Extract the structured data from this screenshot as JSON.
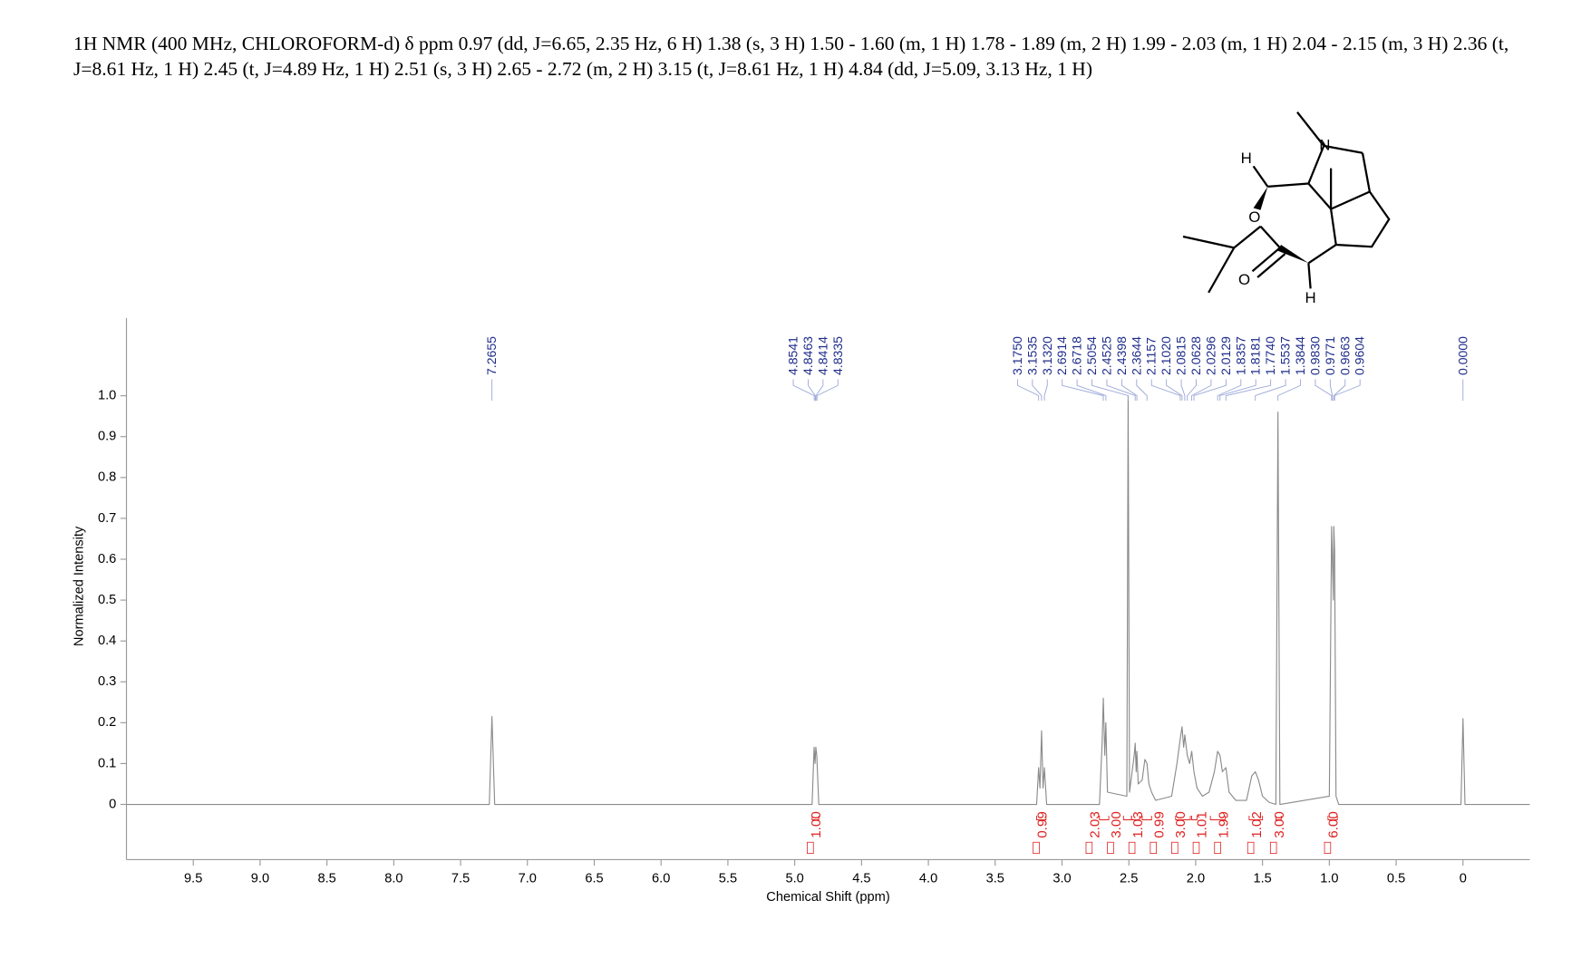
{
  "title": "1H NMR (400 MHz, CHLOROFORM-d) δ ppm 0.97 (dd, J=6.65, 2.35 Hz, 6 H) 1.38 (s, 3 H) 1.50 - 1.60 (m, 1 H) 1.78 - 1.89 (m, 2 H) 1.99 - 2.03 (m, 1 H) 2.04 - 2.15 (m, 3 H) 2.36 (t, J=8.61 Hz, 1 H) 2.45 (t, J=4.89 Hz, 1 H) 2.51 (s, 3 H) 2.65 - 2.72 (m, 2 H) 3.15 (t, J=8.61 Hz, 1 H) 4.84 (dd, J=5.09, 3.13 Hz, 1 H)",
  "structure": {
    "labels": [
      "N",
      "H",
      "O",
      "O",
      "H"
    ]
  },
  "chart_data": {
    "type": "line",
    "x_label": "Chemical Shift (ppm)",
    "y_label": "Normalized Intensity",
    "xlim": [
      10.0,
      -0.5
    ],
    "ylim": [
      -0.135,
      1.19
    ],
    "xticks": [
      9.5,
      {
        "value": 9,
        "label": "9.0"
      },
      8.5,
      {
        "value": 8,
        "label": "8.0"
      },
      7.5,
      {
        "value": 7,
        "label": "7.0"
      },
      6.5,
      {
        "value": 6,
        "label": "6.0"
      },
      5.5,
      {
        "value": 5,
        "label": "5.0"
      },
      4.5,
      {
        "value": 4,
        "label": "4.0"
      },
      3.5,
      {
        "value": 3,
        "label": "3.0"
      },
      2.5,
      {
        "value": 2,
        "label": "2.0"
      },
      1.5,
      {
        "value": 1,
        "label": "1.0"
      },
      0.5,
      0
    ],
    "yticks": [
      0,
      0.1,
      0.2,
      0.3,
      0.4,
      0.5,
      0.6,
      0.7,
      0.8,
      0.9,
      {
        "value": 1,
        "label": "1.0"
      }
    ],
    "x": [
      10.0,
      7.285,
      7.2655,
      7.245,
      4.87,
      4.855,
      4.848,
      4.842,
      4.835,
      4.82,
      3.19,
      3.175,
      3.165,
      3.153,
      3.142,
      3.132,
      3.115,
      2.72,
      2.7,
      2.691,
      2.68,
      2.672,
      2.66,
      2.515,
      2.5054,
      2.495,
      2.46,
      2.4525,
      2.445,
      2.4398,
      2.43,
      2.4,
      2.38,
      2.3644,
      2.35,
      2.33,
      2.3,
      2.18,
      2.14,
      2.1157,
      2.102,
      2.09,
      2.0815,
      2.0628,
      2.045,
      2.0296,
      2.0129,
      1.99,
      1.95,
      1.9,
      1.86,
      1.8357,
      1.8181,
      1.8,
      1.774,
      1.75,
      1.7,
      1.62,
      1.58,
      1.5537,
      1.53,
      1.5,
      1.45,
      1.4,
      1.3844,
      1.37,
      1.0,
      0.983,
      0.977,
      0.97,
      0.9663,
      0.9604,
      0.95,
      0.93,
      0.015,
      0,
      -0.015,
      -0.5
    ],
    "series": [
      {
        "color": "#8a8a8a",
        "values": [
          0,
          0,
          0.215,
          0,
          0,
          0.14,
          0.1,
          0.14,
          0.12,
          0,
          0,
          0.09,
          0.04,
          0.18,
          0.04,
          0.09,
          0,
          0,
          0.15,
          0.26,
          0.12,
          0.2,
          0.03,
          0.02,
          1.0,
          0.03,
          0.12,
          0.15,
          0.08,
          0.13,
          0.05,
          0.06,
          0.11,
          0.1,
          0.05,
          0.03,
          0.01,
          0.02,
          0.1,
          0.16,
          0.19,
          0.14,
          0.17,
          0.12,
          0.1,
          0.13,
          0.08,
          0.04,
          0.02,
          0.03,
          0.08,
          0.13,
          0.12,
          0.08,
          0.09,
          0.03,
          0.01,
          0.01,
          0.07,
          0.08,
          0.06,
          0.02,
          0.005,
          0,
          0.96,
          0,
          0.02,
          0.68,
          0.6,
          0.5,
          0.68,
          0.62,
          0.02,
          0,
          0,
          0.21,
          0,
          0
        ]
      }
    ],
    "peak_labels": [
      7.2655,
      4.8541,
      4.8463,
      4.8414,
      4.8335,
      {
        "value": 3.175,
        "label": "3.1750"
      },
      3.1535,
      {
        "value": 3.132,
        "label": "3.1320"
      },
      2.6914,
      2.6718,
      2.5054,
      2.4525,
      2.4398,
      2.3644,
      2.1157,
      {
        "value": 2.102,
        "label": "2.1020"
      },
      2.0815,
      2.0628,
      2.0296,
      2.0129,
      1.8357,
      1.8181,
      {
        "value": 1.774,
        "label": "1.7740"
      },
      1.5537,
      1.3844,
      {
        "value": 0.983,
        "label": "0.9830"
      },
      0.9771,
      0.9663,
      0.9604,
      {
        "value": 0,
        "label": "0.0000"
      }
    ],
    "peak_label_color": "#1f2d8a",
    "integrals": [
      {
        "value": {
          "value": 1,
          "label": "1.00"
        },
        "range": [
          4.87,
          4.82
        ]
      },
      {
        "value": 0.99,
        "range": [
          3.19,
          3.12
        ]
      },
      {
        "value": 2.03,
        "range": [
          2.72,
          2.65
        ]
      },
      {
        "value": {
          "value": 3,
          "label": "3.00"
        },
        "range": [
          2.54,
          2.48
        ]
      },
      {
        "value": 1.03,
        "range": [
          2.48,
          2.42
        ]
      },
      {
        "value": 0.99,
        "range": [
          2.4,
          2.33
        ]
      },
      {
        "value": {
          "value": 3,
          "label": "3.00"
        },
        "range": [
          2.15,
          2.04
        ]
      },
      {
        "value": 1.01,
        "range": [
          2.03,
          1.99
        ]
      },
      {
        "value": 1.99,
        "range": [
          1.89,
          1.78
        ]
      },
      {
        "value": 1.02,
        "range": [
          1.6,
          1.5
        ]
      },
      {
        "value": {
          "value": 3,
          "label": "3.00"
        },
        "range": [
          1.4,
          1.36
        ]
      },
      {
        "value": {
          "value": 6,
          "label": "6.00"
        },
        "range": [
          1.01,
          0.94
        ]
      }
    ],
    "integral_color": "#e02020"
  }
}
